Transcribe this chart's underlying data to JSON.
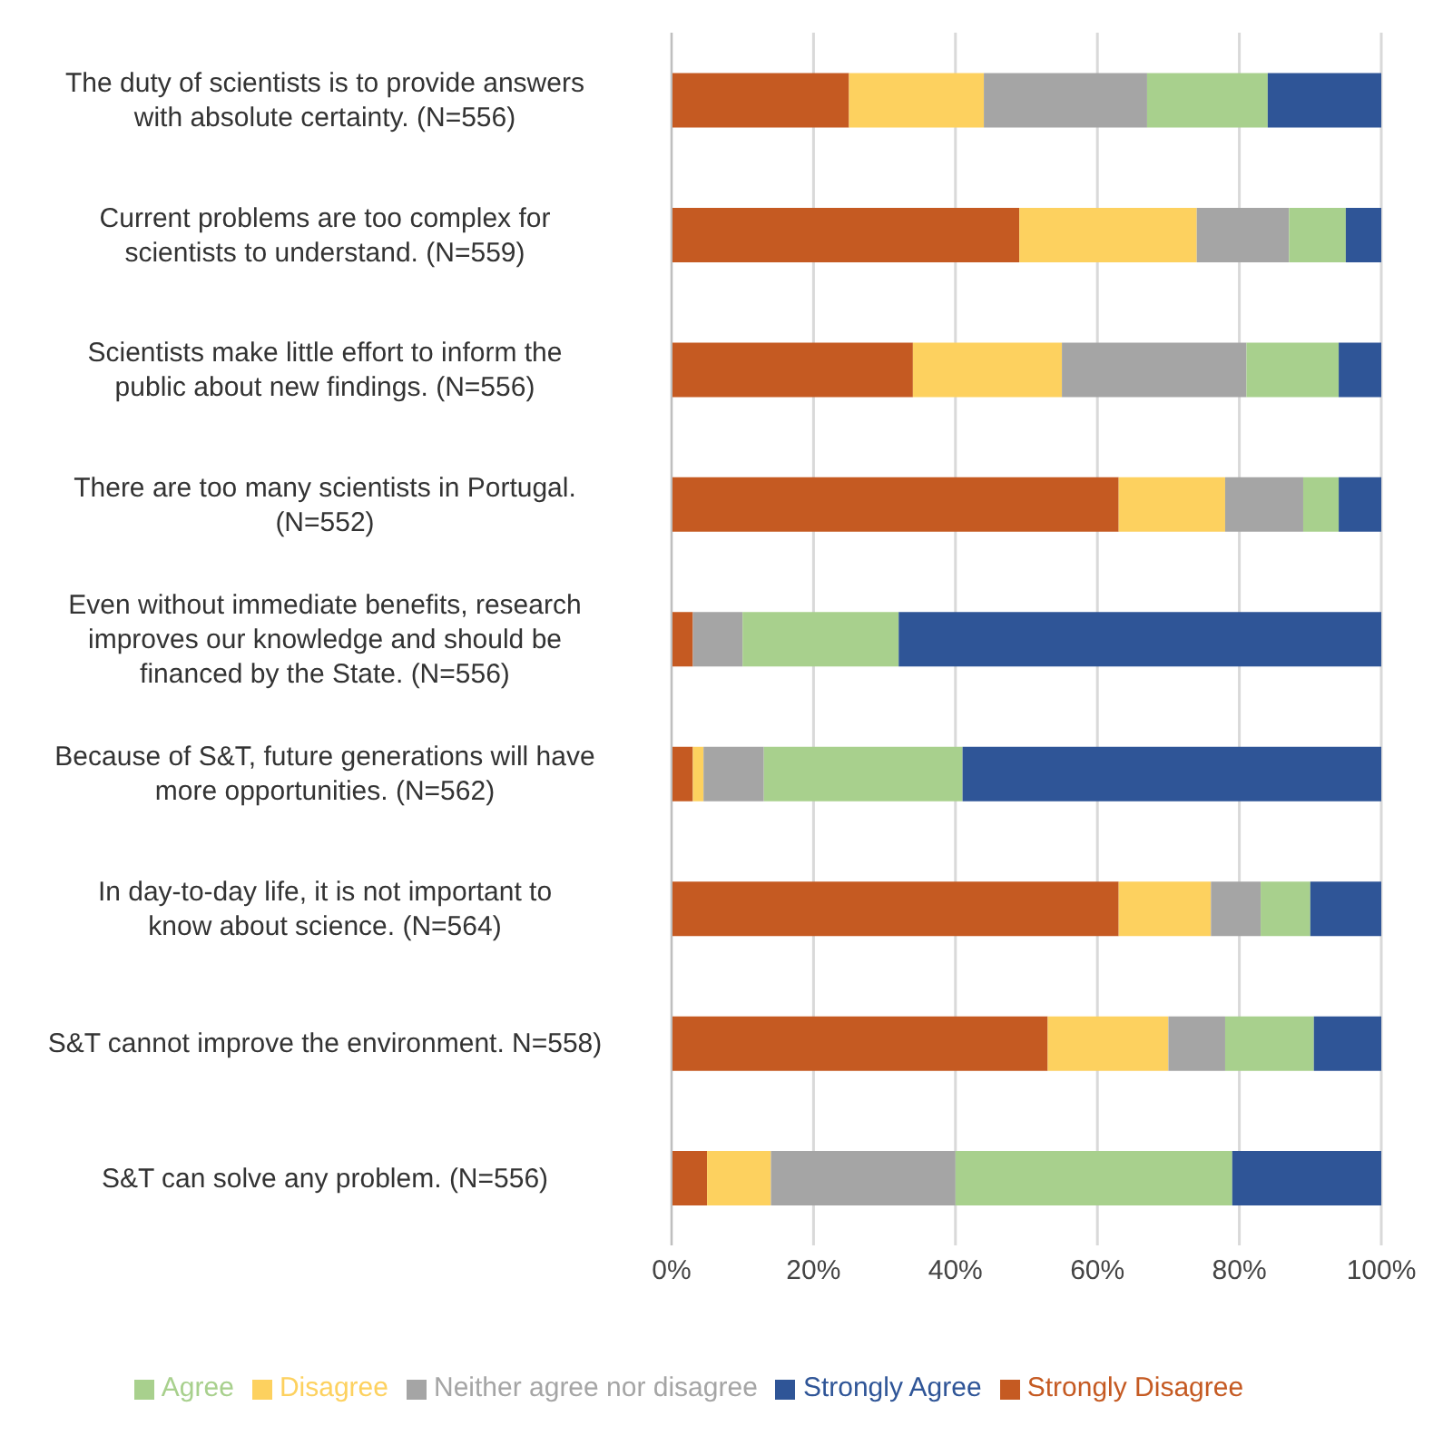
{
  "chart_data": {
    "type": "bar",
    "orientation": "horizontal",
    "stacked": true,
    "categories": [
      "The duty of scientists is to provide answers with absolute certainty. (N=556)",
      "Current problems are too complex for scientists to understand. (N=559)",
      "Scientists make little effort to inform the public about new findings. (N=556)",
      "There are too many scientists in Portugal. (N=552)",
      "Even without immediate benefits, research improves our knowledge and should be financed by the State. (N=556)",
      "Because of S&T, future generations will have more opportunities. (N=562)",
      "In day-to-day life, it is not important to know about science. (N=564)",
      "S&T cannot improve the environment. N=558)",
      "S&T can solve any problem. (N=556)"
    ],
    "series": [
      {
        "name": "Strongly Disagree",
        "color": "#c55a22",
        "values": [
          25,
          49,
          34,
          63,
          3,
          3,
          63,
          53,
          5
        ]
      },
      {
        "name": "Disagree",
        "color": "#fdd15f",
        "values": [
          19,
          25,
          21,
          15,
          0,
          1.5,
          13,
          17,
          9
        ]
      },
      {
        "name": "Neither agree nor disagree",
        "color": "#a5a5a5",
        "values": [
          23,
          13,
          26,
          11,
          7,
          8.5,
          7,
          8,
          26
        ]
      },
      {
        "name": "Agree",
        "color": "#a8d08d",
        "values": [
          17,
          8,
          13,
          5,
          22,
          28,
          7,
          12.5,
          39
        ]
      },
      {
        "name": "Strongly Agree",
        "color": "#2f5597",
        "values": [
          16,
          5,
          6,
          6,
          68,
          59,
          10,
          9.5,
          21
        ]
      }
    ],
    "xlim": [
      0,
      100
    ],
    "xticks": [
      {
        "value": 0,
        "label": "0%"
      },
      {
        "value": 20,
        "label": "20%"
      },
      {
        "value": 40,
        "label": "40%"
      },
      {
        "value": 60,
        "label": "60%"
      },
      {
        "value": 80,
        "label": "80%"
      },
      {
        "value": 100,
        "label": "100%"
      }
    ],
    "grid": "x",
    "legend": "bottom"
  }
}
